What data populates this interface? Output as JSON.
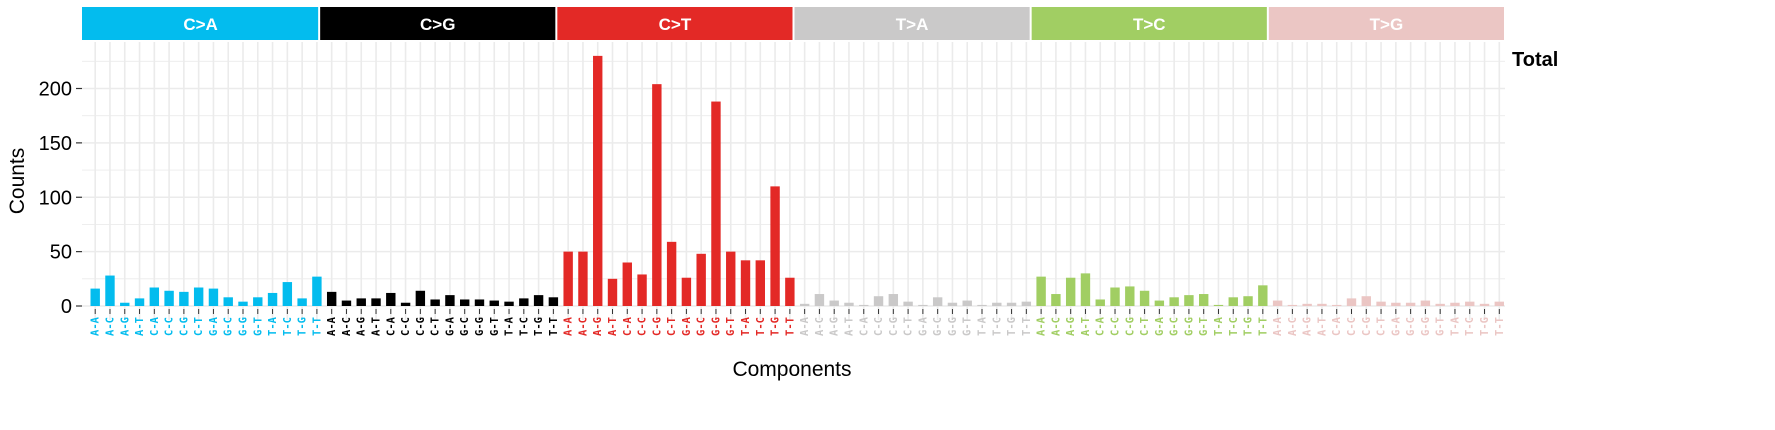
{
  "chart_data": {
    "type": "bar",
    "panel_label": "Total",
    "xlabel": "Components",
    "ylabel": "Counts",
    "ylim": [
      0,
      240
    ],
    "yticks": [
      0,
      50,
      100,
      150,
      200
    ],
    "grid": true,
    "groups": [
      {
        "name": "C>A",
        "color": "#03BCEE"
      },
      {
        "name": "C>G",
        "color": "#000000"
      },
      {
        "name": "C>T",
        "color": "#E32926"
      },
      {
        "name": "T>A",
        "color": "#CAC9C9"
      },
      {
        "name": "T>C",
        "color": "#A1CE63"
      },
      {
        "name": "T>G",
        "color": "#EBC6C4"
      }
    ],
    "categories": [
      "A-A",
      "A-C",
      "A-G",
      "A-T",
      "C-A",
      "C-C",
      "C-G",
      "C-T",
      "G-A",
      "G-C",
      "G-G",
      "G-T",
      "T-A",
      "T-C",
      "T-G",
      "T-T"
    ],
    "series": [
      {
        "group": "C>A",
        "values": [
          16,
          28,
          3,
          7,
          17,
          14,
          13,
          17,
          16,
          8,
          4,
          8,
          12,
          22,
          7,
          27
        ]
      },
      {
        "group": "C>G",
        "values": [
          13,
          5,
          7,
          7,
          12,
          3,
          14,
          6,
          10,
          6,
          6,
          5,
          4,
          7,
          10,
          8
        ]
      },
      {
        "group": "C>T",
        "values": [
          50,
          50,
          230,
          25,
          40,
          29,
          204,
          59,
          26,
          48,
          188,
          50,
          42,
          42,
          110,
          26
        ]
      },
      {
        "group": "T>A",
        "values": [
          2,
          11,
          5,
          3,
          1,
          9,
          11,
          4,
          1,
          8,
          3,
          5,
          1,
          3,
          3,
          4
        ]
      },
      {
        "group": "T>C",
        "values": [
          27,
          11,
          26,
          30,
          6,
          17,
          18,
          14,
          5,
          8,
          10,
          11,
          1,
          8,
          9,
          19
        ]
      },
      {
        "group": "T>G",
        "values": [
          5,
          1,
          2,
          2,
          1,
          7,
          9,
          4,
          3,
          3,
          5,
          2,
          3,
          4,
          2,
          4
        ]
      }
    ]
  }
}
